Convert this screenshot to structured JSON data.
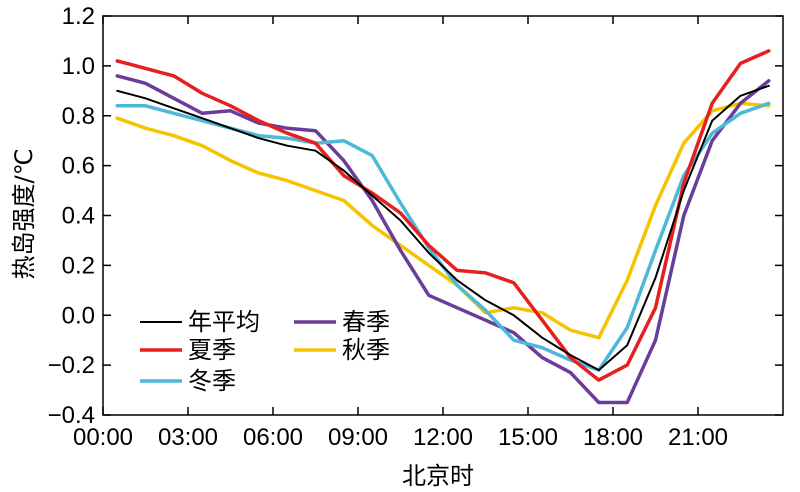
{
  "chart_data": {
    "type": "line",
    "xlabel": "北京时",
    "ylabel": "热岛强度/℃",
    "xlim": [
      0,
      24
    ],
    "ylim": [
      -0.4,
      1.2
    ],
    "x_tick_values": [
      0,
      3,
      6,
      9,
      12,
      15,
      18,
      21
    ],
    "x_tick_labels": [
      "00:00",
      "03:00",
      "06:00",
      "09:00",
      "12:00",
      "15:00",
      "18:00",
      "21:00"
    ],
    "y_tick_values": [
      -0.4,
      -0.2,
      0.0,
      0.2,
      0.4,
      0.6,
      0.8,
      1.0,
      1.2
    ],
    "y_tick_labels": [
      "−0.4",
      "−0.2",
      "0.0",
      "0.2",
      "0.4",
      "0.6",
      "0.8",
      "1.0",
      "1.2"
    ],
    "x": [
      0,
      1,
      2,
      3,
      4,
      5,
      6,
      7,
      8,
      9,
      10,
      11,
      12,
      13,
      14,
      15,
      16,
      17,
      18,
      19,
      20,
      21,
      22,
      23
    ],
    "series": [
      {
        "name": "年平均",
        "color": "#000000",
        "values": [
          0.9,
          0.87,
          0.83,
          0.79,
          0.75,
          0.71,
          0.68,
          0.66,
          0.58,
          0.48,
          0.38,
          0.25,
          0.14,
          0.06,
          0.0,
          -0.09,
          -0.16,
          -0.22,
          -0.12,
          0.15,
          0.5,
          0.78,
          0.88,
          0.92
        ]
      },
      {
        "name": "夏季",
        "color": "#e6201e",
        "values": [
          1.02,
          0.99,
          0.96,
          0.89,
          0.84,
          0.78,
          0.73,
          0.69,
          0.56,
          0.49,
          0.41,
          0.28,
          0.18,
          0.17,
          0.13,
          -0.02,
          -0.17,
          -0.26,
          -0.2,
          0.03,
          0.53,
          0.85,
          1.01,
          1.06
        ]
      },
      {
        "name": "冬季",
        "color": "#4db8d8",
        "values": [
          0.84,
          0.84,
          0.81,
          0.78,
          0.75,
          0.72,
          0.71,
          0.69,
          0.7,
          0.64,
          0.45,
          0.27,
          0.12,
          0.02,
          -0.1,
          -0.13,
          -0.18,
          -0.22,
          -0.05,
          0.26,
          0.56,
          0.73,
          0.81,
          0.85
        ]
      },
      {
        "name": "春季",
        "color": "#6a3d9a",
        "values": [
          0.96,
          0.93,
          0.87,
          0.81,
          0.82,
          0.77,
          0.75,
          0.74,
          0.62,
          0.46,
          0.26,
          0.08,
          0.03,
          -0.02,
          -0.07,
          -0.17,
          -0.23,
          -0.35,
          -0.35,
          -0.1,
          0.4,
          0.7,
          0.85,
          0.94
        ]
      },
      {
        "name": "秋季",
        "color": "#f5c400",
        "values": [
          0.79,
          0.75,
          0.72,
          0.68,
          0.62,
          0.57,
          0.54,
          0.5,
          0.46,
          0.36,
          0.28,
          0.2,
          0.12,
          0.01,
          0.03,
          0.01,
          -0.06,
          -0.09,
          0.14,
          0.44,
          0.69,
          0.82,
          0.85,
          0.84
        ]
      }
    ],
    "legend": {
      "placement": "bottom-left",
      "columns": [
        [
          "年平均",
          "夏季",
          "冬季"
        ],
        [
          "春季",
          "秋季"
        ]
      ]
    },
    "grid": false
  }
}
